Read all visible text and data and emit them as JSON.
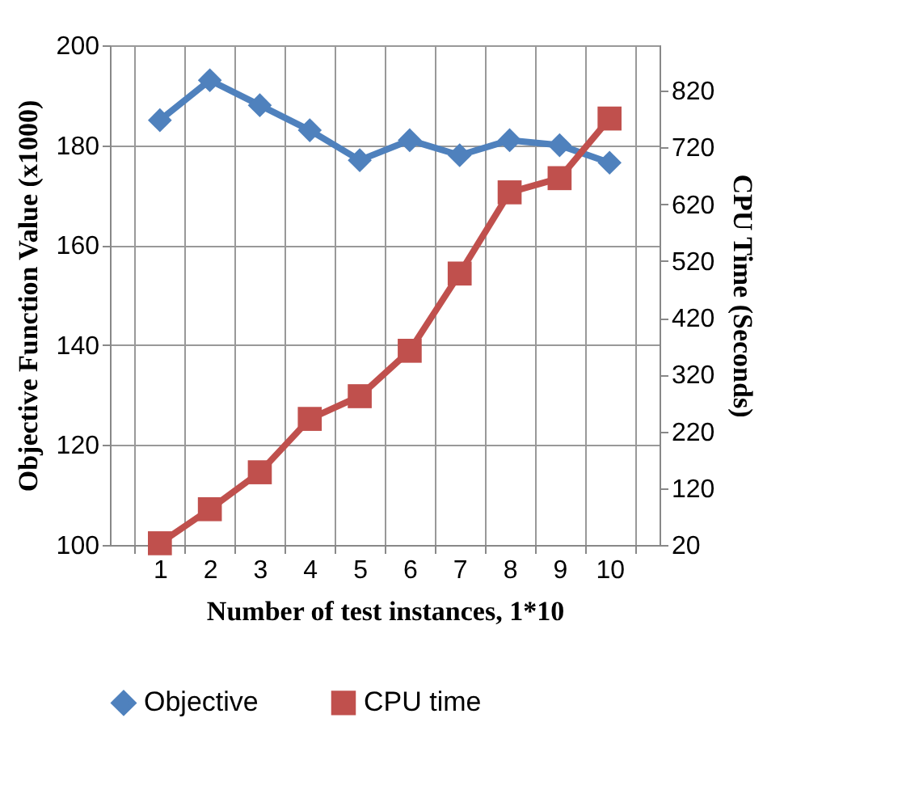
{
  "chart_data": {
    "type": "line",
    "xlabel": "Number of test instances, 1*10",
    "ylabel": "Objective Function Value (x1000)",
    "y2label": "CPU Time (Seconds)",
    "categories": [
      "1",
      "2",
      "3",
      "4",
      "5",
      "6",
      "7",
      "8",
      "9",
      "10"
    ],
    "series": [
      {
        "name": "Objective",
        "color": "#4f81bd",
        "marker": "diamond",
        "values": [
          185,
          193,
          188,
          183,
          177,
          181,
          178,
          181,
          180,
          176.5
        ]
      },
      {
        "name": "CPU time",
        "color": "#c0504d",
        "marker": "square",
        "axis": "y2",
        "values": [
          23,
          83,
          148,
          242,
          282,
          362,
          498,
          641,
          666,
          771
        ]
      }
    ],
    "ylim": [
      100,
      200
    ],
    "yticks": [
      100,
      120,
      140,
      160,
      180,
      200
    ],
    "y2lim": [
      20,
      900
    ],
    "y2ticks": [
      20,
      120,
      220,
      320,
      420,
      520,
      620,
      720,
      820
    ],
    "grid": true,
    "legend": "bottom",
    "line_style": "solid"
  }
}
